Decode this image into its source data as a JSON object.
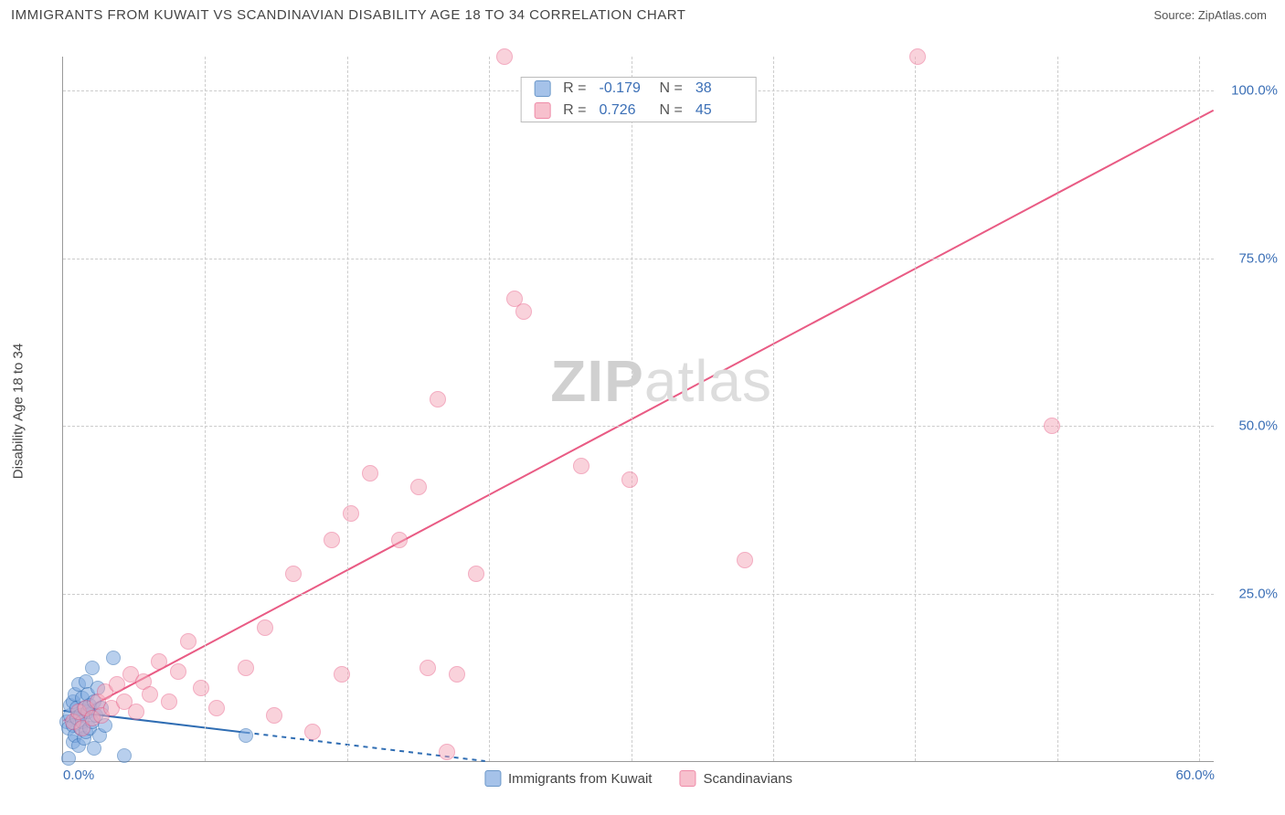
{
  "header": {
    "title": "IMMIGRANTS FROM KUWAIT VS SCANDINAVIAN DISABILITY AGE 18 TO 34 CORRELATION CHART",
    "source_label": "Source: ZipAtlas.com"
  },
  "watermark": {
    "zip": "ZIP",
    "atlas": "atlas"
  },
  "chart": {
    "type": "scatter",
    "background_color": "#ffffff",
    "grid_color": "#cccccc",
    "axis_color": "#999999",
    "y_axis_title": "Disability Age 18 to 34",
    "xlim": [
      0,
      60
    ],
    "ylim": [
      0,
      105
    ],
    "x_ticks": [
      {
        "pos": 0.0,
        "label": "0.0%"
      },
      {
        "pos": 60.0,
        "label": "60.0%"
      }
    ],
    "x_grid": [
      7.4,
      14.8,
      22.2,
      29.6,
      37.0,
      44.4,
      51.8,
      59.2
    ],
    "y_ticks": [
      {
        "pos": 25.0,
        "label": "25.0%"
      },
      {
        "pos": 50.0,
        "label": "50.0%"
      },
      {
        "pos": 75.0,
        "label": "75.0%"
      },
      {
        "pos": 100.0,
        "label": "100.0%"
      }
    ],
    "tick_label_color": "#3b6fb6",
    "tick_label_fontsize": 15,
    "axis_title_color": "#444444",
    "axis_title_fontsize": 15,
    "series": [
      {
        "name": "Immigrants from Kuwait",
        "fill_color": "#7fa9e0",
        "fill_opacity": 0.55,
        "stroke_color": "#2f6db3",
        "marker_radius": 8,
        "trend": {
          "x1": 0,
          "y1": 7.5,
          "x2": 22,
          "y2": 0,
          "color": "#2f6db3",
          "width": 2,
          "dash": "5,5",
          "extend_solid_to_x": 9.5
        },
        "stats": {
          "R": "-0.179",
          "N": "38"
        },
        "points": [
          [
            0.2,
            6.0
          ],
          [
            0.3,
            5.0
          ],
          [
            0.4,
            7.0
          ],
          [
            0.4,
            8.5
          ],
          [
            0.5,
            5.5
          ],
          [
            0.5,
            3.0
          ],
          [
            0.5,
            9.0
          ],
          [
            0.6,
            10.0
          ],
          [
            0.6,
            4.0
          ],
          [
            0.7,
            6.5
          ],
          [
            0.7,
            8.0
          ],
          [
            0.8,
            11.5
          ],
          [
            0.8,
            2.5
          ],
          [
            0.9,
            7.0
          ],
          [
            0.9,
            5.0
          ],
          [
            1.0,
            9.5
          ],
          [
            1.0,
            6.0
          ],
          [
            1.1,
            3.5
          ],
          [
            1.1,
            8.0
          ],
          [
            1.2,
            12.0
          ],
          [
            1.2,
            4.5
          ],
          [
            1.3,
            7.5
          ],
          [
            1.3,
            10.0
          ],
          [
            1.4,
            5.0
          ],
          [
            1.4,
            8.5
          ],
          [
            1.5,
            14.0
          ],
          [
            1.5,
            6.0
          ],
          [
            1.6,
            2.0
          ],
          [
            1.6,
            9.0
          ],
          [
            1.7,
            7.0
          ],
          [
            1.8,
            11.0
          ],
          [
            1.9,
            4.0
          ],
          [
            2.0,
            8.0
          ],
          [
            2.2,
            5.5
          ],
          [
            2.6,
            15.5
          ],
          [
            3.2,
            1.0
          ],
          [
            9.5,
            4.0
          ],
          [
            0.3,
            0.5
          ]
        ]
      },
      {
        "name": "Scandinavians",
        "fill_color": "#f4a6b8",
        "fill_opacity": 0.5,
        "stroke_color": "#e95b84",
        "marker_radius": 9,
        "trend": {
          "x1": 0,
          "y1": 6.0,
          "x2": 60,
          "y2": 97.0,
          "color": "#e95b84",
          "width": 2,
          "dash": "",
          "extend_solid_to_x": 60
        },
        "stats": {
          "R": "0.726",
          "N": "45"
        },
        "points": [
          [
            0.5,
            6.0
          ],
          [
            0.8,
            7.5
          ],
          [
            1.0,
            5.0
          ],
          [
            1.2,
            8.0
          ],
          [
            1.5,
            6.5
          ],
          [
            1.8,
            9.0
          ],
          [
            2.0,
            7.0
          ],
          [
            2.2,
            10.5
          ],
          [
            2.5,
            8.0
          ],
          [
            2.8,
            11.5
          ],
          [
            3.2,
            9.0
          ],
          [
            3.5,
            13.0
          ],
          [
            3.8,
            7.5
          ],
          [
            4.2,
            12.0
          ],
          [
            4.5,
            10.0
          ],
          [
            5.0,
            15.0
          ],
          [
            5.5,
            9.0
          ],
          [
            6.0,
            13.5
          ],
          [
            6.5,
            18.0
          ],
          [
            7.2,
            11.0
          ],
          [
            8.0,
            8.0
          ],
          [
            9.5,
            14.0
          ],
          [
            10.5,
            20.0
          ],
          [
            11.0,
            7.0
          ],
          [
            12.0,
            28.0
          ],
          [
            13.0,
            4.5
          ],
          [
            14.0,
            33.0
          ],
          [
            15.0,
            37.0
          ],
          [
            14.5,
            13.0
          ],
          [
            16.0,
            43.0
          ],
          [
            17.5,
            33.0
          ],
          [
            18.5,
            41.0
          ],
          [
            19.0,
            14.0
          ],
          [
            20.5,
            13.0
          ],
          [
            19.5,
            54.0
          ],
          [
            20.0,
            1.5
          ],
          [
            21.5,
            28.0
          ],
          [
            23.0,
            105.0
          ],
          [
            23.5,
            69.0
          ],
          [
            24.0,
            67.0
          ],
          [
            27.0,
            44.0
          ],
          [
            29.5,
            42.0
          ],
          [
            35.5,
            30.0
          ],
          [
            44.5,
            105.0
          ],
          [
            51.5,
            50.0
          ]
        ]
      }
    ],
    "stats_legend": {
      "border_color": "#bbbbbb",
      "label_color": "#555555",
      "value_color": "#3b6fb6",
      "R_label": "R =",
      "N_label": "N ="
    },
    "bottom_legend": {
      "text_color": "#444444"
    }
  }
}
